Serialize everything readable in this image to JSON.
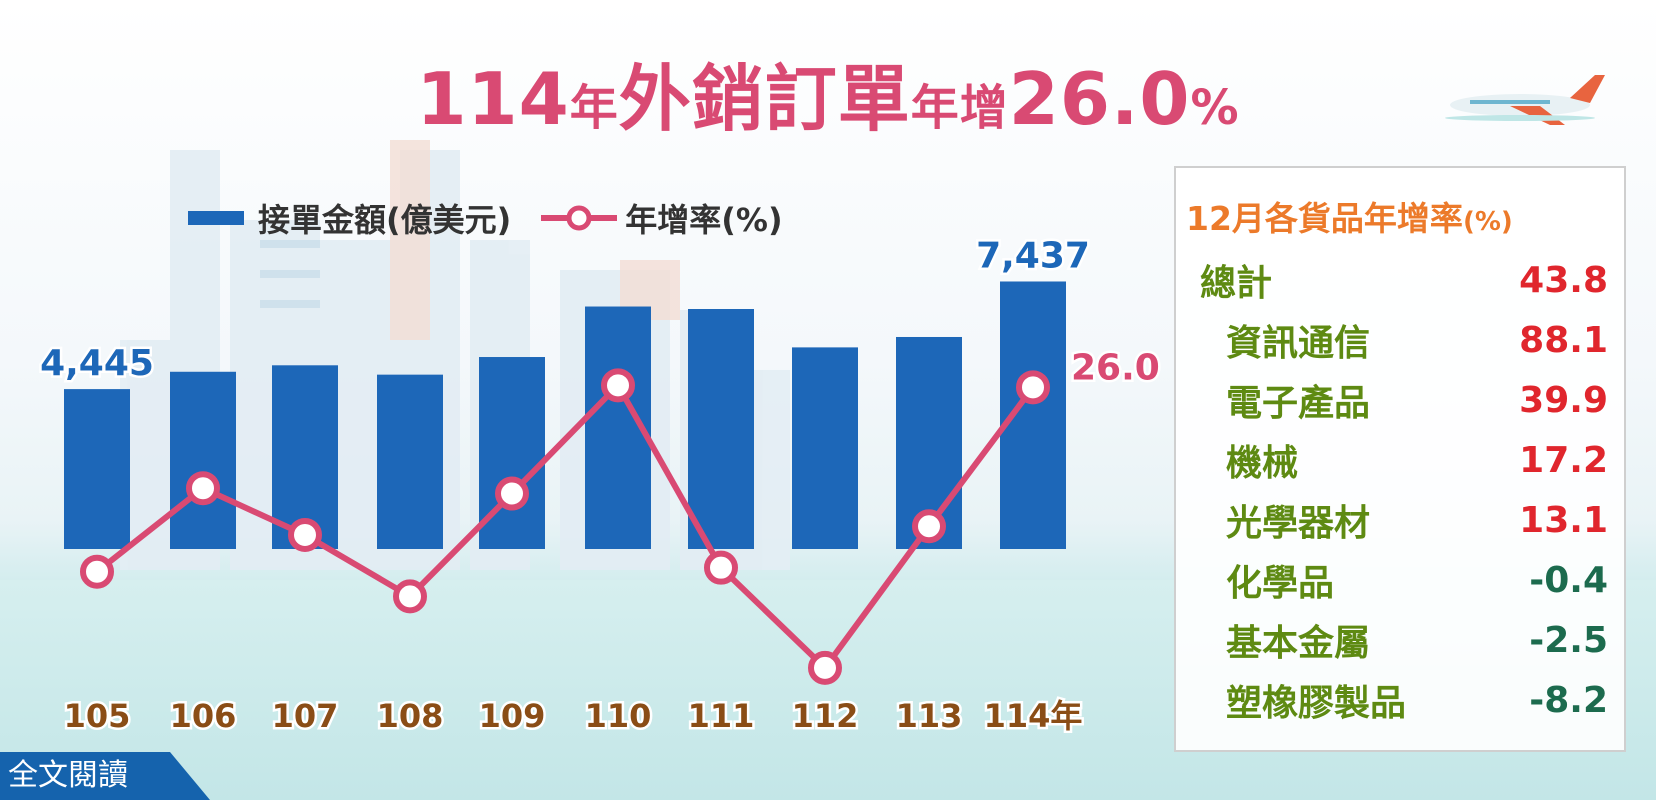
{
  "title": {
    "part1": "114",
    "part2": "年",
    "part3": "外銷訂單",
    "part4": "年",
    "part5": "增",
    "part6": "26.0",
    "part7": "%"
  },
  "legend": {
    "bar_label": "接單金額(億美元)",
    "line_label": "年增率(%)"
  },
  "chart_data": {
    "type": "bar+line",
    "categories": [
      "105",
      "106",
      "107",
      "108",
      "109",
      "110",
      "111",
      "112",
      "113",
      "114年"
    ],
    "series": [
      {
        "name": "接單金額(億美元)",
        "type": "bar",
        "values": [
          4445,
          4927,
          5107,
          4847,
          5337,
          6741,
          6672,
          5605,
          5894,
          7437
        ],
        "color": "#1d67b8"
      },
      {
        "name": "年增率(%)",
        "type": "line",
        "values": [
          -1.6,
          10.9,
          3.9,
          -5.3,
          10.1,
          26.3,
          -1.0,
          -16.0,
          5.2,
          26.0
        ],
        "color": "#d94a73"
      }
    ],
    "data_labels": [
      {
        "series": 0,
        "index": 0,
        "text": "4,445"
      },
      {
        "series": 0,
        "index": 9,
        "text": "7,437"
      },
      {
        "series": 1,
        "index": 9,
        "text": "26.0"
      }
    ],
    "grid": false,
    "legend_position": "top-left"
  },
  "panel": {
    "title": "12月各貨品年增率",
    "title_unit": "(%)",
    "rows": [
      {
        "name": "總計",
        "value": "43.8",
        "level": "top"
      },
      {
        "name": "資訊通信",
        "value": "88.1",
        "level": "sub"
      },
      {
        "name": "電子產品",
        "value": "39.9",
        "level": "sub"
      },
      {
        "name": "機械",
        "value": "17.2",
        "level": "sub"
      },
      {
        "name": "光學器材",
        "value": "13.1",
        "level": "sub"
      },
      {
        "name": "化學品",
        "value": "-0.4",
        "level": "sub"
      },
      {
        "name": "基本金屬",
        "value": "-2.5",
        "level": "sub"
      },
      {
        "name": "塑橡膠製品",
        "value": "-8.2",
        "level": "sub"
      }
    ],
    "positive_color": "#e0262d",
    "negative_color": "#1c6b4e"
  },
  "read_more": "全文閱讀"
}
